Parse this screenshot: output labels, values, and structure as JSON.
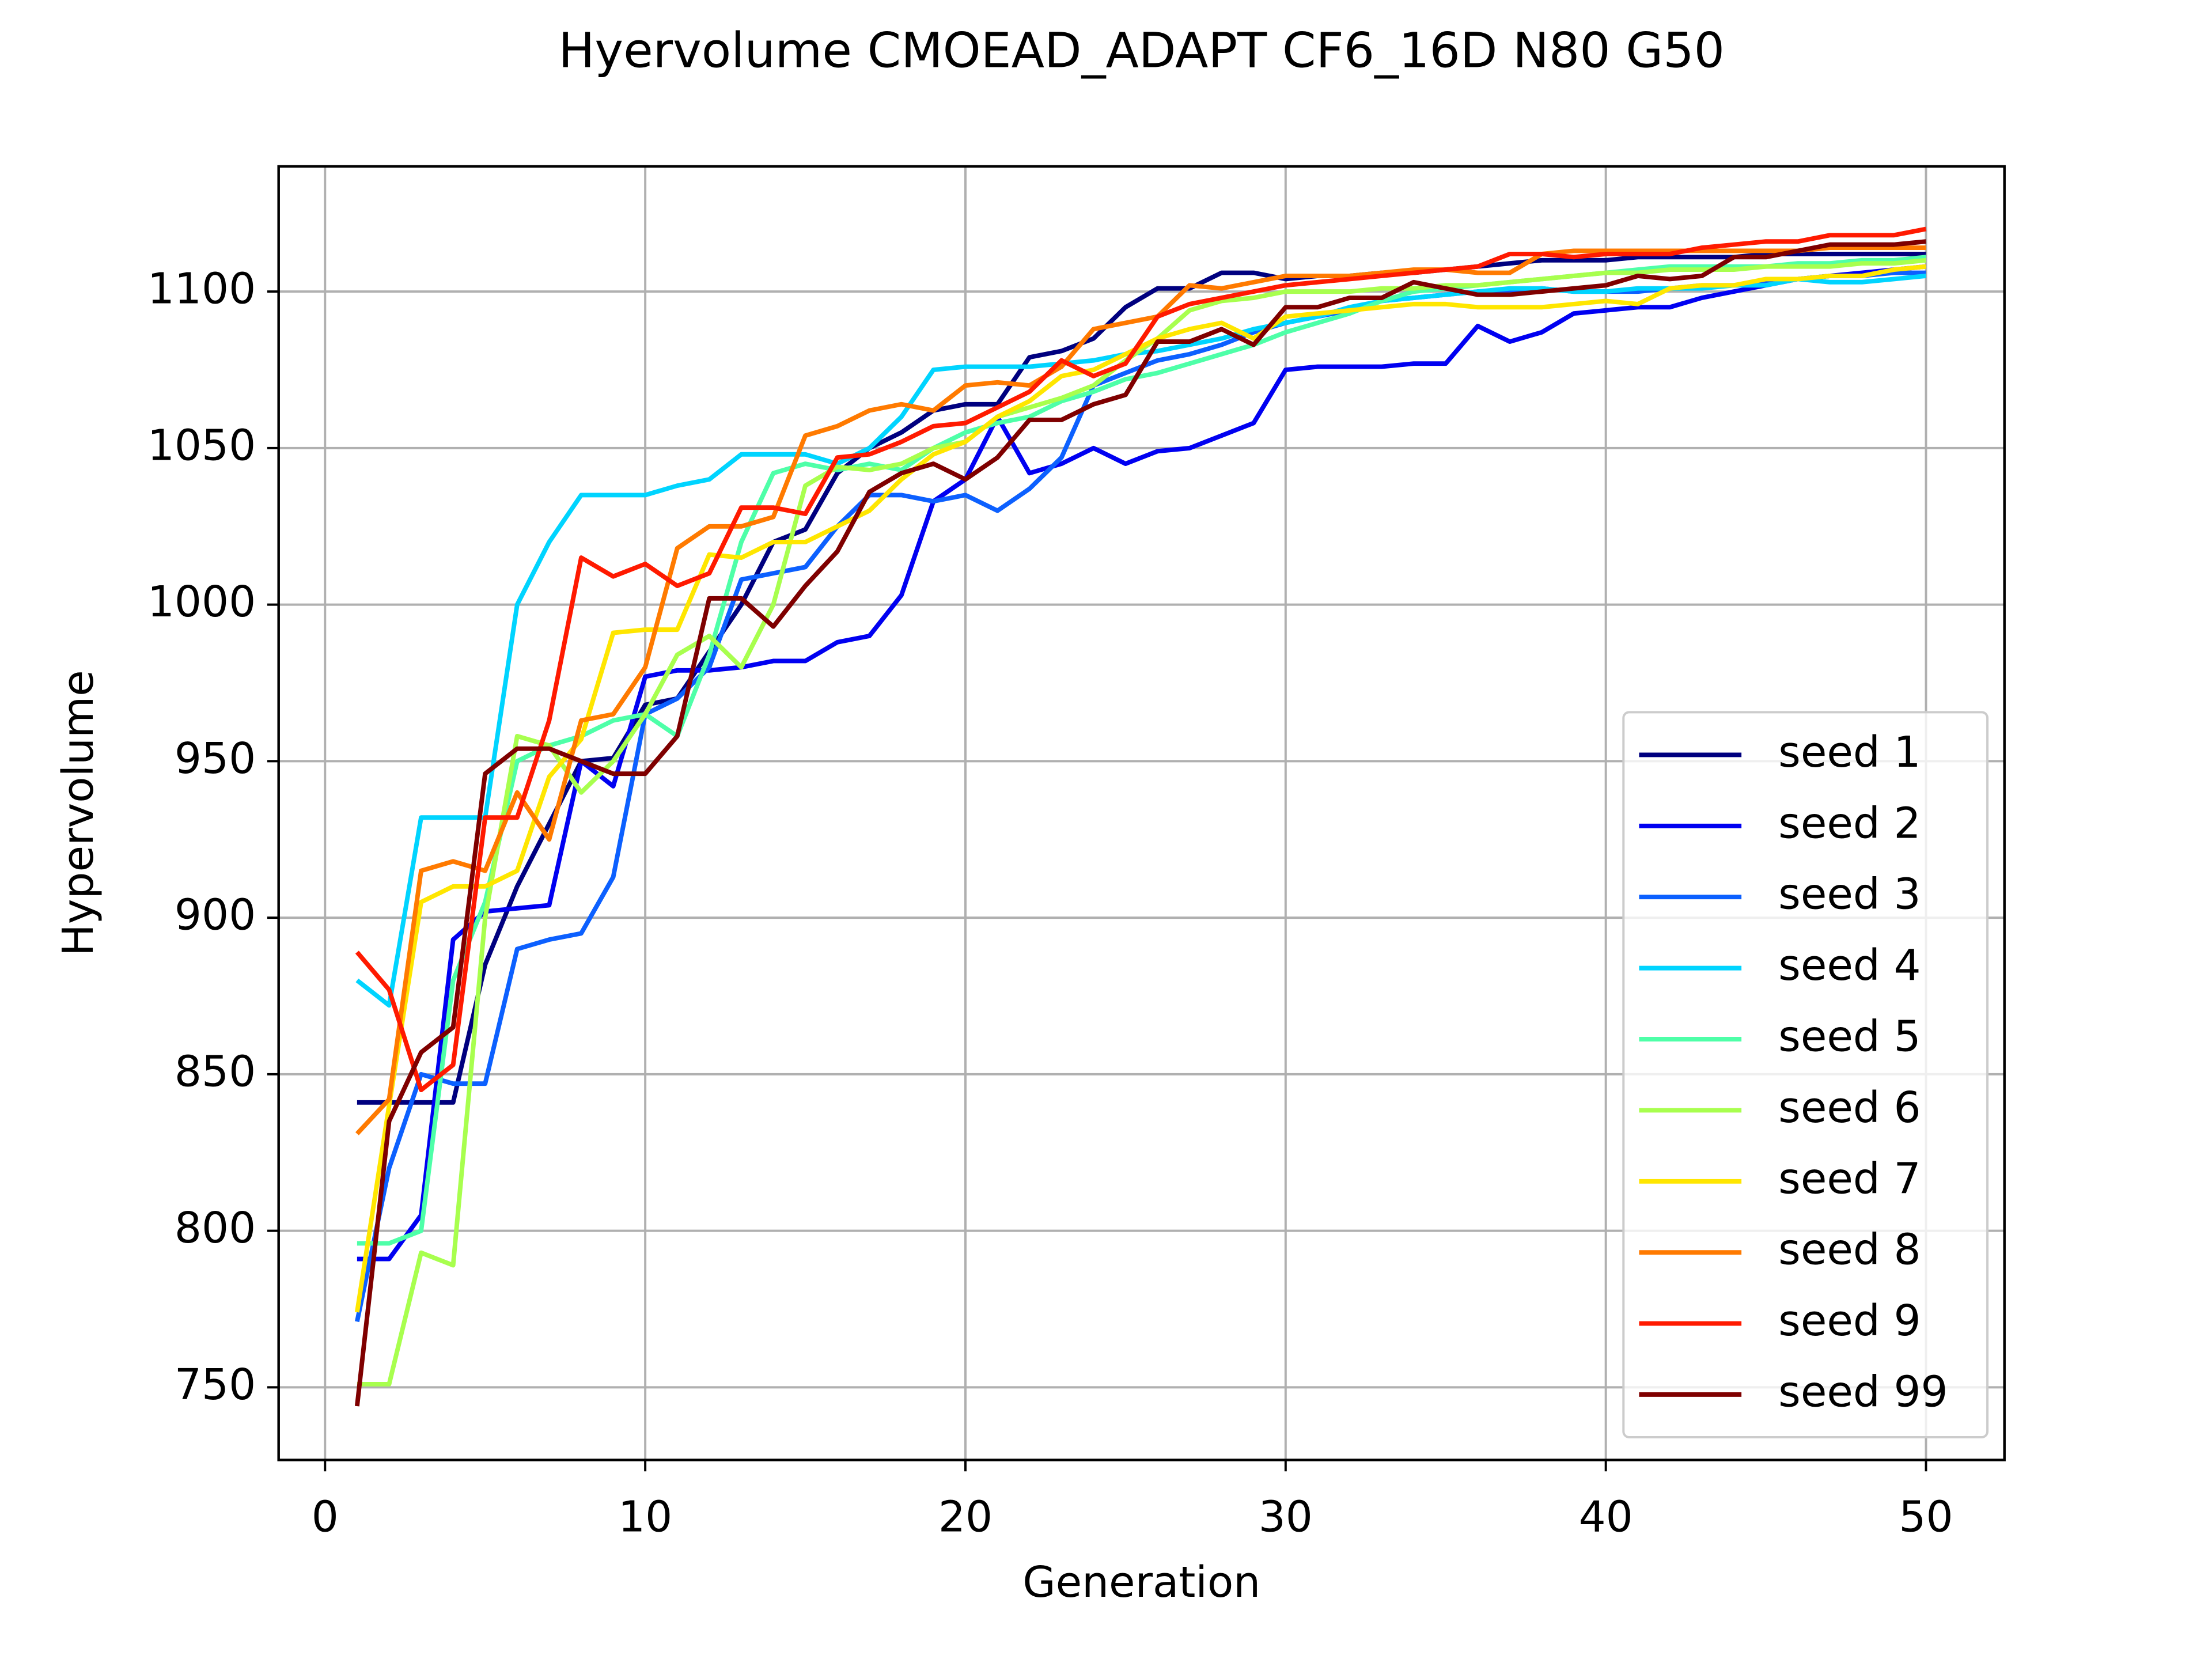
{
  "chart_data": {
    "type": "line",
    "title": "Hyervolume CMOEAD_ADAPT CF6_16D N80 G50",
    "x_label": "Generation",
    "y_label": "Hypervolume",
    "x": [
      1,
      2,
      3,
      4,
      5,
      6,
      7,
      8,
      9,
      10,
      11,
      12,
      13,
      14,
      15,
      16,
      17,
      18,
      19,
      20,
      21,
      22,
      23,
      24,
      25,
      26,
      27,
      28,
      29,
      30,
      31,
      32,
      33,
      34,
      35,
      36,
      37,
      38,
      39,
      40,
      41,
      42,
      43,
      44,
      45,
      46,
      47,
      48,
      49,
      50
    ],
    "xlim": [
      -1.45,
      52.45
    ],
    "ylim": [
      726.8,
      1140
    ],
    "xticks": [
      0,
      10,
      20,
      30,
      40,
      50
    ],
    "yticks": [
      750,
      800,
      850,
      900,
      950,
      1000,
      1050,
      1100
    ],
    "grid": true,
    "legend": "lower right",
    "series": [
      {
        "name": "seed 1",
        "color": "#00007f",
        "values": [
          841,
          841,
          841,
          841,
          885,
          910,
          930,
          950,
          951,
          968,
          970,
          985,
          1000,
          1020,
          1024,
          1042,
          1050,
          1055,
          1062,
          1064,
          1064,
          1079,
          1081,
          1085,
          1095,
          1101,
          1101,
          1106,
          1106,
          1104,
          1105,
          1105,
          1106,
          1106,
          1107,
          1108,
          1109,
          1110,
          1110,
          1110,
          1111,
          1111,
          1111,
          1111,
          1112,
          1112,
          1112,
          1112,
          1112,
          1112
        ]
      },
      {
        "name": "seed 2",
        "color": "#0000f1",
        "values": [
          791,
          791,
          805,
          893,
          902,
          903,
          904,
          950,
          942,
          977,
          979,
          979,
          980,
          982,
          982,
          988,
          990,
          1003,
          1033,
          1040,
          1060,
          1042,
          1045,
          1050,
          1045,
          1049,
          1050,
          1054,
          1058,
          1075,
          1076,
          1076,
          1076,
          1077,
          1077,
          1089,
          1084,
          1087,
          1093,
          1094,
          1095,
          1095,
          1098,
          1100,
          1102,
          1104,
          1105,
          1106,
          1107,
          1108
        ]
      },
      {
        "name": "seed 3",
        "color": "#0c60ff",
        "values": [
          771,
          820,
          850,
          847,
          847,
          890,
          893,
          895,
          913,
          965,
          970,
          980,
          1008,
          1010,
          1012,
          1025,
          1035,
          1035,
          1033,
          1035,
          1030,
          1037,
          1047,
          1070,
          1074,
          1078,
          1080,
          1083,
          1087,
          1090,
          1092,
          1094,
          1097,
          1098,
          1099,
          1100,
          1100,
          1101,
          1100,
          1100,
          1100,
          1101,
          1102,
          1102,
          1103,
          1104,
          1105,
          1105,
          1106,
          1106
        ]
      },
      {
        "name": "seed 4",
        "color": "#00d4ff",
        "values": [
          880,
          872,
          932,
          932,
          932,
          1000,
          1020,
          1035,
          1035,
          1035,
          1038,
          1040,
          1048,
          1048,
          1048,
          1045,
          1050,
          1060,
          1075,
          1076,
          1076,
          1076,
          1077,
          1078,
          1080,
          1081,
          1083,
          1085,
          1088,
          1090,
          1092,
          1095,
          1097,
          1098,
          1099,
          1100,
          1101,
          1101,
          1100,
          1100,
          1101,
          1101,
          1101,
          1102,
          1102,
          1104,
          1103,
          1103,
          1104,
          1105
        ]
      },
      {
        "name": "seed 5",
        "color": "#4effa8",
        "values": [
          796,
          796,
          800,
          880,
          905,
          950,
          955,
          958,
          963,
          965,
          958,
          984,
          1020,
          1042,
          1045,
          1043,
          1045,
          1043,
          1050,
          1055,
          1058,
          1060,
          1065,
          1068,
          1072,
          1074,
          1077,
          1080,
          1083,
          1087,
          1090,
          1093,
          1097,
          1100,
          1101,
          1102,
          1103,
          1104,
          1105,
          1106,
          1107,
          1108,
          1108,
          1108,
          1108,
          1109,
          1109,
          1110,
          1110,
          1111
        ]
      },
      {
        "name": "seed 6",
        "color": "#a8ff4e",
        "values": [
          751,
          751,
          793,
          789,
          900,
          958,
          955,
          940,
          950,
          965,
          984,
          990,
          980,
          1000,
          1038,
          1044,
          1043,
          1045,
          1050,
          1052,
          1060,
          1063,
          1066,
          1070,
          1078,
          1085,
          1094,
          1097,
          1098,
          1100,
          1100,
          1100,
          1101,
          1101,
          1102,
          1102,
          1103,
          1104,
          1105,
          1106,
          1106,
          1107,
          1107,
          1107,
          1108,
          1108,
          1108,
          1109,
          1109,
          1110
        ]
      },
      {
        "name": "seed 7",
        "color": "#ffe600",
        "values": [
          774,
          840,
          905,
          910,
          910,
          915,
          945,
          957,
          991,
          992,
          992,
          1016,
          1015,
          1020,
          1020,
          1025,
          1030,
          1040,
          1048,
          1052,
          1060,
          1065,
          1073,
          1075,
          1080,
          1085,
          1088,
          1090,
          1085,
          1092,
          1093,
          1094,
          1095,
          1096,
          1096,
          1095,
          1095,
          1095,
          1096,
          1097,
          1096,
          1101,
          1102,
          1102,
          1104,
          1104,
          1105,
          1105,
          1107,
          1108
        ]
      },
      {
        "name": "seed 8",
        "color": "#ff7a00",
        "values": [
          831,
          842,
          915,
          918,
          915,
          940,
          925,
          963,
          965,
          980,
          1018,
          1025,
          1025,
          1028,
          1054,
          1057,
          1062,
          1064,
          1062,
          1070,
          1071,
          1070,
          1076,
          1088,
          1090,
          1092,
          1102,
          1101,
          1103,
          1105,
          1105,
          1105,
          1106,
          1107,
          1107,
          1106,
          1106,
          1112,
          1113,
          1113,
          1113,
          1113,
          1113,
          1113,
          1113,
          1113,
          1114,
          1114,
          1114,
          1114
        ]
      },
      {
        "name": "seed 9",
        "color": "#ff1a00",
        "values": [
          889,
          877,
          845,
          853,
          932,
          932,
          963,
          1015,
          1009,
          1013,
          1006,
          1010,
          1031,
          1031,
          1029,
          1047,
          1048,
          1052,
          1057,
          1058,
          1063,
          1068,
          1078,
          1073,
          1077,
          1092,
          1096,
          1098,
          1100,
          1102,
          1103,
          1104,
          1105,
          1106,
          1107,
          1108,
          1112,
          1112,
          1111,
          1112,
          1112,
          1112,
          1114,
          1115,
          1116,
          1116,
          1118,
          1118,
          1118,
          1120
        ]
      },
      {
        "name": "seed 99",
        "color": "#7f0000",
        "values": [
          744,
          835,
          857,
          865,
          946,
          954,
          954,
          950,
          946,
          946,
          958,
          1002,
          1002,
          993,
          1006,
          1017,
          1036,
          1042,
          1045,
          1040,
          1047,
          1059,
          1059,
          1064,
          1067,
          1084,
          1084,
          1088,
          1083,
          1095,
          1095,
          1098,
          1098,
          1103,
          1101,
          1099,
          1099,
          1100,
          1101,
          1102,
          1105,
          1104,
          1105,
          1111,
          1111,
          1113,
          1115,
          1115,
          1115,
          1116
        ]
      }
    ]
  }
}
